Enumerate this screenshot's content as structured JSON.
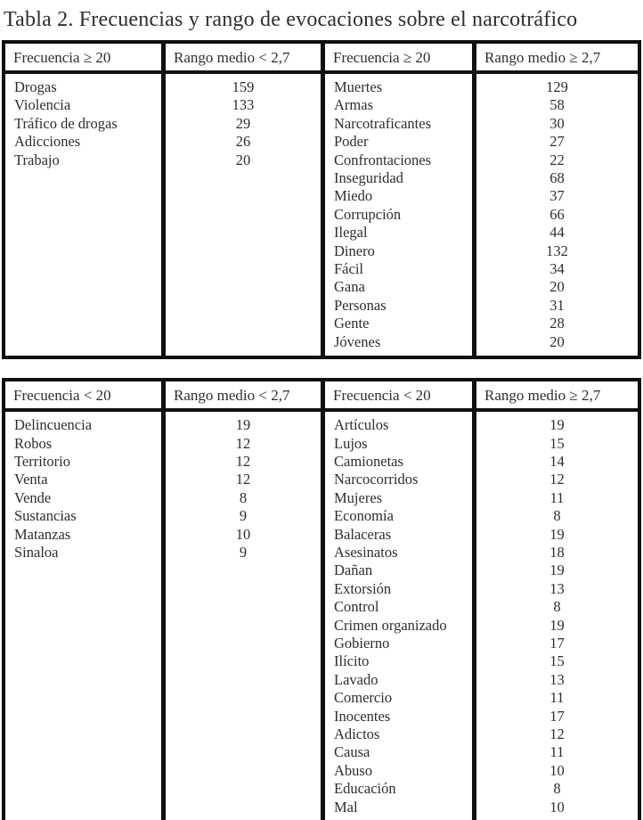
{
  "title": "Tabla 2. Frecuencias y rango de evocaciones sobre el narcotráfico",
  "colors": {
    "text": "#2e2e2e",
    "border": "#101010",
    "background": "#ffffff"
  },
  "tables": [
    {
      "headers": [
        "Frecuencia ≥ 20",
        "Rango medio < 2,7",
        "Frecuencia ≥ 20",
        "Rango medio ≥ 2,7"
      ],
      "left": [
        {
          "word": "Drogas",
          "value": "159"
        },
        {
          "word": "Violencia",
          "value": "133"
        },
        {
          "word": "Tráfico de drogas",
          "value": "29"
        },
        {
          "word": "Adicciones",
          "value": "26"
        },
        {
          "word": "Trabajo",
          "value": "20"
        }
      ],
      "right": [
        {
          "word": "Muertes",
          "value": "129"
        },
        {
          "word": "Armas",
          "value": "58"
        },
        {
          "word": "Narcotraficantes",
          "value": "30"
        },
        {
          "word": "Poder",
          "value": "27"
        },
        {
          "word": "Confrontaciones",
          "value": "22"
        },
        {
          "word": "Inseguridad",
          "value": "68"
        },
        {
          "word": "Miedo",
          "value": "37"
        },
        {
          "word": "Corrupción",
          "value": "66"
        },
        {
          "word": "Ilegal",
          "value": "44"
        },
        {
          "word": "Dinero",
          "value": "132"
        },
        {
          "word": "Fácil",
          "value": "34"
        },
        {
          "word": "Gana",
          "value": "20"
        },
        {
          "word": "Personas",
          "value": "31"
        },
        {
          "word": "Gente",
          "value": "28"
        },
        {
          "word": "Jóvenes",
          "value": "20"
        }
      ]
    },
    {
      "headers": [
        "Frecuencia < 20",
        "Rango medio < 2,7",
        "Frecuencia < 20",
        "Rango medio ≥ 2,7"
      ],
      "left": [
        {
          "word": "Delincuencia",
          "value": "19"
        },
        {
          "word": "Robos",
          "value": "12"
        },
        {
          "word": "Territorio",
          "value": "12"
        },
        {
          "word": "Venta",
          "value": "12"
        },
        {
          "word": "Vende",
          "value": "8"
        },
        {
          "word": "Sustancias",
          "value": "9"
        },
        {
          "word": "Matanzas",
          "value": "10"
        },
        {
          "word": "Sinaloa",
          "value": "9"
        }
      ],
      "right": [
        {
          "word": "Artículos",
          "value": "19"
        },
        {
          "word": "Lujos",
          "value": "15"
        },
        {
          "word": "Camionetas",
          "value": "14"
        },
        {
          "word": "Narcocorridos",
          "value": "12"
        },
        {
          "word": "Mujeres",
          "value": "11"
        },
        {
          "word": "Economía",
          "value": "8"
        },
        {
          "word": "Balaceras",
          "value": "19"
        },
        {
          "word": "Asesinatos",
          "value": "18"
        },
        {
          "word": "Dañan",
          "value": "19"
        },
        {
          "word": "Extorsión",
          "value": "13"
        },
        {
          "word": "Control",
          "value": "8"
        },
        {
          "word": "Crimen organizado",
          "value": "19"
        },
        {
          "word": "Gobierno",
          "value": "17"
        },
        {
          "word": "Ilícito",
          "value": "15"
        },
        {
          "word": "Lavado",
          "value": "13"
        },
        {
          "word": "Comercio",
          "value": "11"
        },
        {
          "word": "Inocentes",
          "value": "17"
        },
        {
          "word": "Adictos",
          "value": "12"
        },
        {
          "word": "Causa",
          "value": "11"
        },
        {
          "word": "Abuso",
          "value": "10"
        },
        {
          "word": "Educación",
          "value": "8"
        },
        {
          "word": "Mal",
          "value": "10"
        }
      ]
    }
  ]
}
